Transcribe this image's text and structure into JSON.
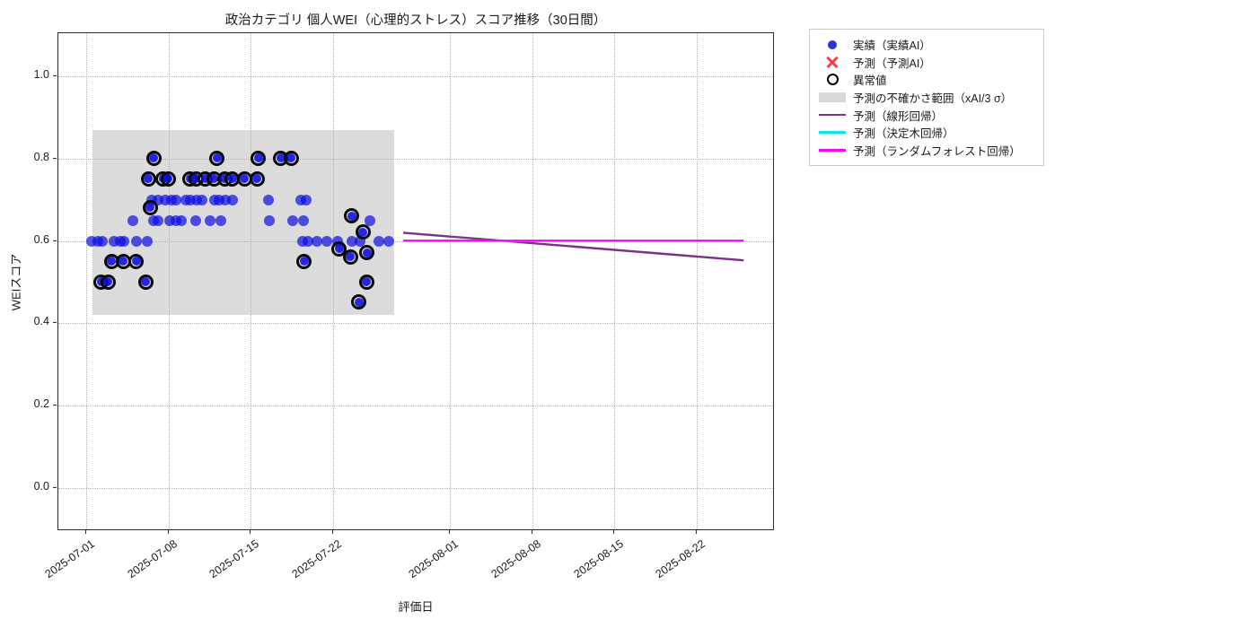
{
  "title": "政治カテゴリ 個人WEI（心理的ストレス）スコア推移（30日間）",
  "axes": {
    "x_label": "評価日",
    "y_label": "WEIスコア",
    "x_epoch": "2025-07-01",
    "x_tick_labels": [
      "2025-07-01",
      "2025-07-08",
      "2025-07-15",
      "2025-07-22",
      "2025-08-01",
      "2025-08-08",
      "2025-08-15",
      "2025-08-22"
    ],
    "y_tick_labels": [
      "0.0",
      "0.2",
      "0.4",
      "0.6",
      "0.8",
      "1.0"
    ],
    "x_range_days": [
      -2.4,
      58.6
    ],
    "y_range": [
      -0.105,
      1.105
    ],
    "grid": "dotted"
  },
  "legend": {
    "items": [
      {
        "label": "実績（実績AI）",
        "marker": "dot",
        "color": "#3232dc"
      },
      {
        "label": "予測（予測AI）",
        "marker": "cross",
        "color": "#ef4343"
      },
      {
        "label": "異常値",
        "marker": "open-circle",
        "color": "#000000"
      },
      {
        "label": "予測の不確かさ範囲（xAI/3 σ）",
        "marker": "patch",
        "color": "#d9d9d9"
      },
      {
        "label": "予測（線形回帰）",
        "marker": "line",
        "color": "#7e2f8e"
      },
      {
        "label": "予測（決定木回帰）",
        "marker": "line",
        "color": "#00eaea"
      },
      {
        "label": "予測（ランダムフォレスト回帰）",
        "marker": "line",
        "color": "#ff00ff"
      }
    ]
  },
  "chart_data": {
    "type": "scatter",
    "x_unit": "days since 2025-07-01 (fractional = intraday reading)",
    "point_columns": [
      "day",
      "wei_score",
      "is_outlier"
    ],
    "point_color": "#0d0de1",
    "outlier_ring_color": "#0b0b0b",
    "points": [
      [
        0.45,
        0.6,
        0
      ],
      [
        1.0,
        0.6,
        0
      ],
      [
        1.4,
        0.6,
        0
      ],
      [
        2.35,
        0.6,
        0
      ],
      [
        2.9,
        0.6,
        0
      ],
      [
        3.2,
        0.6,
        0
      ],
      [
        4.3,
        0.6,
        0
      ],
      [
        5.2,
        0.6,
        0
      ],
      [
        1.3,
        0.5,
        1
      ],
      [
        1.9,
        0.5,
        1
      ],
      [
        5.1,
        0.5,
        1
      ],
      [
        2.2,
        0.55,
        1
      ],
      [
        3.2,
        0.55,
        1
      ],
      [
        4.3,
        0.55,
        1
      ],
      [
        4.0,
        0.65,
        0
      ],
      [
        5.7,
        0.65,
        0
      ],
      [
        6.1,
        0.65,
        0
      ],
      [
        7.1,
        0.65,
        0
      ],
      [
        7.65,
        0.65,
        0
      ],
      [
        8.1,
        0.65,
        0
      ],
      [
        9.3,
        0.65,
        0
      ],
      [
        10.55,
        0.65,
        0
      ],
      [
        11.5,
        0.65,
        0
      ],
      [
        5.5,
        0.68,
        1
      ],
      [
        5.6,
        0.7,
        0
      ],
      [
        6.1,
        0.7,
        0
      ],
      [
        6.7,
        0.7,
        0
      ],
      [
        7.3,
        0.7,
        0
      ],
      [
        7.65,
        0.7,
        0
      ],
      [
        8.5,
        0.7,
        0
      ],
      [
        8.9,
        0.7,
        0
      ],
      [
        9.4,
        0.7,
        0
      ],
      [
        9.9,
        0.7,
        0
      ],
      [
        10.9,
        0.7,
        0
      ],
      [
        11.3,
        0.7,
        0
      ],
      [
        11.85,
        0.7,
        0
      ],
      [
        12.5,
        0.7,
        0
      ],
      [
        5.35,
        0.75,
        1
      ],
      [
        6.6,
        0.75,
        1
      ],
      [
        7.0,
        0.75,
        1
      ],
      [
        8.9,
        0.75,
        1
      ],
      [
        9.4,
        0.75,
        1
      ],
      [
        10.2,
        0.75,
        1
      ],
      [
        10.9,
        0.75,
        1
      ],
      [
        11.85,
        0.75,
        1
      ],
      [
        12.5,
        0.75,
        1
      ],
      [
        13.5,
        0.75,
        1
      ],
      [
        14.6,
        0.75,
        1
      ],
      [
        5.8,
        0.8,
        1
      ],
      [
        11.2,
        0.8,
        1
      ],
      [
        14.7,
        0.8,
        1
      ],
      [
        16.6,
        0.8,
        1
      ],
      [
        17.5,
        0.8,
        1
      ],
      [
        15.5,
        0.7,
        0
      ],
      [
        18.3,
        0.7,
        0
      ],
      [
        18.75,
        0.7,
        0
      ],
      [
        15.6,
        0.65,
        0
      ],
      [
        17.6,
        0.65,
        0
      ],
      [
        18.5,
        0.65,
        0
      ],
      [
        24.2,
        0.65,
        0
      ],
      [
        18.4,
        0.6,
        0
      ],
      [
        18.9,
        0.6,
        0
      ],
      [
        19.65,
        0.6,
        0
      ],
      [
        20.5,
        0.6,
        0
      ],
      [
        21.4,
        0.6,
        0
      ],
      [
        22.65,
        0.6,
        0
      ],
      [
        23.3,
        0.6,
        0
      ],
      [
        24.9,
        0.6,
        0
      ],
      [
        25.8,
        0.6,
        0
      ],
      [
        18.6,
        0.55,
        1
      ],
      [
        21.6,
        0.58,
        1
      ],
      [
        22.55,
        0.56,
        1
      ],
      [
        22.65,
        0.66,
        1
      ],
      [
        23.6,
        0.62,
        1
      ],
      [
        23.95,
        0.57,
        1
      ],
      [
        23.9,
        0.5,
        1
      ],
      [
        23.25,
        0.45,
        1
      ]
    ],
    "uncertainty_band": {
      "label": "予測の不確かさ範囲（xAI/3 σ）",
      "color": "#dcdcdc",
      "x_days": [
        0.5,
        26.2
      ],
      "y": [
        0.42,
        0.87
      ]
    },
    "forecast_lines": [
      {
        "name": "予測（線形回帰）",
        "color": "#7e2f8e",
        "width": 2.4,
        "x_days": [
          27,
          56
        ],
        "y": [
          0.62,
          0.553
        ]
      },
      {
        "name": "予測（決定木回帰）",
        "color": "#00eaea",
        "width": 2.0,
        "x_days": [
          27,
          56
        ],
        "y": [
          0.6,
          0.6
        ]
      },
      {
        "name": "予測（ランダムフォレスト回帰）",
        "color": "#ff00ff",
        "width": 2.0,
        "x_days": [
          27,
          56
        ],
        "y": [
          0.601,
          0.601
        ]
      }
    ]
  }
}
